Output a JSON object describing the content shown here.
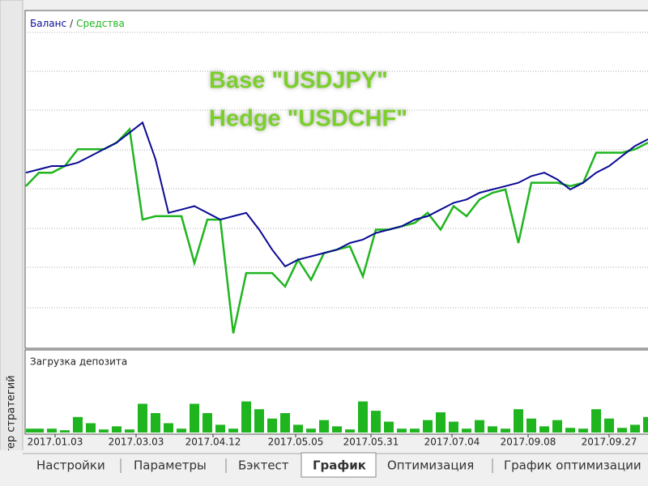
{
  "side_label": "Тестер стратегий",
  "tabs": [
    "Настройки",
    "Параметры",
    "Бэктест",
    "График",
    "Оптимизация",
    "График оптимизации"
  ],
  "active_tab": 3,
  "chart_data": [
    {
      "type": "line",
      "legend_separator": "/",
      "annotations": [
        "Base \"USDJPY\"",
        "Hedge \"USDCHF\""
      ],
      "ylim": [
        0,
        100
      ],
      "series": [
        {
          "name": "Средства",
          "color": "#1fb51f",
          "values": [
            48,
            52,
            52,
            54,
            59,
            59,
            59,
            61,
            65,
            38,
            39,
            39,
            39,
            25,
            38,
            38,
            4,
            22,
            22,
            22,
            18,
            26,
            20,
            28,
            29,
            30,
            21,
            35,
            35,
            36,
            37,
            40,
            35,
            42,
            39,
            44,
            46,
            47,
            31,
            49,
            49,
            49,
            48,
            49,
            58,
            58,
            58,
            59,
            61
          ]
        },
        {
          "name": "Баланс",
          "color": "#0a0a96",
          "values": [
            52,
            53,
            54,
            54,
            55,
            57,
            59,
            61,
            64,
            67,
            56,
            40,
            41,
            42,
            40,
            38,
            39,
            40,
            35,
            29,
            24,
            26,
            27,
            28,
            29,
            31,
            32,
            34,
            35,
            36,
            38,
            39,
            41,
            43,
            44,
            46,
            47,
            48,
            49,
            51,
            52,
            50,
            47,
            49,
            52,
            54,
            57,
            60,
            62
          ]
        }
      ]
    },
    {
      "type": "bar",
      "title": "Загрузка депозита",
      "color": "#1fb51f",
      "ylim": [
        0,
        100
      ],
      "values": [
        5,
        5,
        5,
        3,
        20,
        12,
        4,
        8,
        4,
        37,
        25,
        12,
        5,
        37,
        25,
        10,
        5,
        40,
        30,
        18,
        25,
        10,
        5,
        16,
        8,
        4,
        40,
        28,
        14,
        5,
        5,
        16,
        26,
        14,
        5,
        16,
        8,
        5,
        30,
        18,
        8,
        16,
        6,
        5,
        30,
        18,
        6,
        10,
        20
      ],
      "x_labels": [
        "2017.01.03",
        "2017.03.03",
        "2017.04.12",
        "2017.05.05",
        "2017.05.31",
        "2017.07.04",
        "2017.09.08",
        "2017.09.27"
      ]
    }
  ]
}
